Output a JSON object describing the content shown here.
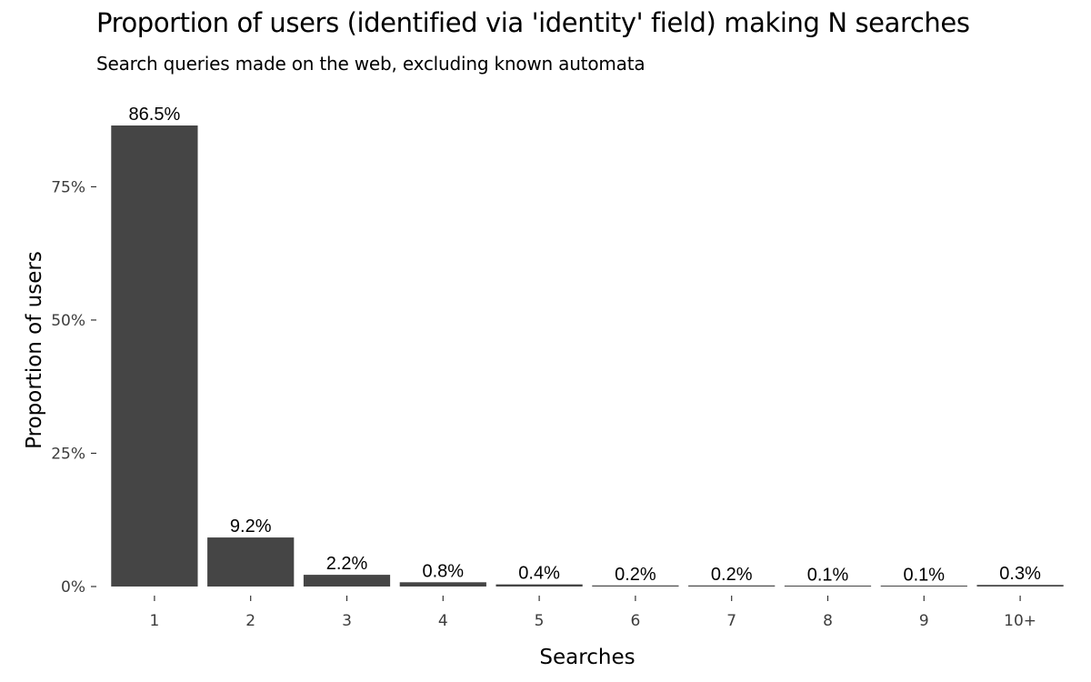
{
  "chart_data": {
    "type": "bar",
    "title": "Proportion of users (identified via 'identity' field) making N searches",
    "subtitle": "Search queries made on the web, excluding known automata",
    "xlabel": "Searches",
    "ylabel": "Proportion of users",
    "categories": [
      "1",
      "2",
      "3",
      "4",
      "5",
      "6",
      "7",
      "8",
      "9",
      "10+"
    ],
    "values": [
      86.5,
      9.2,
      2.2,
      0.8,
      0.4,
      0.2,
      0.2,
      0.1,
      0.1,
      0.3
    ],
    "value_labels": [
      "86.5%",
      "9.2%",
      "2.2%",
      "0.8%",
      "0.4%",
      "0.2%",
      "0.2%",
      "0.1%",
      "0.1%",
      "0.3%"
    ],
    "y_ticks": [
      0,
      25,
      50,
      75
    ],
    "y_tick_labels": [
      "0%",
      "25%",
      "50%",
      "75%"
    ],
    "ylim": [
      0,
      86.5
    ],
    "grid": false,
    "bar_color": "#454545"
  }
}
